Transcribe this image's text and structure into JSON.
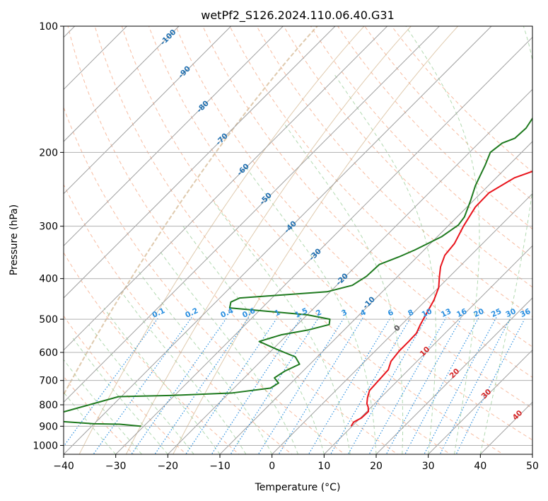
{
  "chart_data": {
    "type": "line",
    "title": "wetPf2_S126.2024.110.06.40.G31",
    "xlabel": "Temperature (°C)",
    "ylabel": "Pressure (hPa)",
    "xlim": [
      -40,
      50
    ],
    "ylim": [
      1050,
      100
    ],
    "y_scale": "log",
    "grid": true,
    "x_ticks": [
      -40,
      -30,
      -20,
      -10,
      0,
      10,
      20,
      30,
      40,
      50
    ],
    "y_ticks": [
      100,
      200,
      300,
      400,
      500,
      600,
      700,
      800,
      900,
      1000
    ],
    "skew": "skew-T log-P diagram",
    "series": [
      {
        "color": "#e8141c",
        "points": [
          [
            9.8,
            900
          ],
          [
            9.5,
            880
          ],
          [
            10.2,
            860
          ],
          [
            10.3,
            830
          ],
          [
            9.4,
            810
          ],
          [
            8.5,
            795
          ],
          [
            7.5,
            770
          ],
          [
            6.5,
            740
          ],
          [
            6.3,
            700
          ],
          [
            6.1,
            660
          ],
          [
            5,
            630
          ],
          [
            4.6,
            595
          ],
          [
            4.6,
            565
          ],
          [
            4.5,
            540
          ],
          [
            3.6,
            515
          ],
          [
            2.5,
            480
          ],
          [
            1.5,
            450
          ],
          [
            0,
            420
          ],
          [
            -2,
            395
          ],
          [
            -3.6,
            375
          ],
          [
            -5,
            352
          ],
          [
            -5.4,
            330
          ],
          [
            -7,
            300
          ],
          [
            -8.4,
            270
          ],
          [
            -8.5,
            250
          ],
          [
            -6.5,
            230
          ],
          [
            -2.3,
            215
          ],
          [
            3.3,
            200
          ],
          [
            7,
            190
          ],
          [
            9.5,
            180
          ],
          [
            12,
            170
          ],
          [
            13.5,
            160
          ],
          [
            15.2,
            150
          ],
          [
            16.2,
            140
          ],
          [
            18,
            130
          ],
          [
            19.4,
            120
          ],
          [
            21.4,
            110
          ],
          [
            23,
            100
          ]
        ]
      },
      {
        "color": "#1f7a1f",
        "points": [
          [
            -30.5,
            900
          ],
          [
            -35,
            890
          ],
          [
            -40,
            888
          ],
          [
            -52,
            868
          ],
          [
            -40.5,
            765
          ],
          [
            -30.8,
            760
          ],
          [
            -19.5,
            750
          ],
          [
            -13,
            730
          ],
          [
            -12.4,
            710
          ],
          [
            -14.2,
            690
          ],
          [
            -13.5,
            665
          ],
          [
            -12,
            640
          ],
          [
            -14.2,
            615
          ],
          [
            -19.2,
            590
          ],
          [
            -24.1,
            565
          ],
          [
            -21.2,
            545
          ],
          [
            -16.8,
            530
          ],
          [
            -13.9,
            515
          ],
          [
            -14.8,
            500
          ],
          [
            -20,
            488
          ],
          [
            -36.2,
            470
          ],
          [
            -37.1,
            455
          ],
          [
            -36.2,
            445
          ],
          [
            -20.6,
            430
          ],
          [
            -17,
            415
          ],
          [
            -16,
            395
          ],
          [
            -15.8,
            370
          ],
          [
            -13.5,
            355
          ],
          [
            -11.8,
            342
          ],
          [
            -9.2,
            318
          ],
          [
            -8.2,
            298
          ],
          [
            -8.6,
            285
          ],
          [
            -10.6,
            260
          ],
          [
            -12.5,
            240
          ],
          [
            -14.5,
            215
          ],
          [
            -16,
            200
          ],
          [
            -15.5,
            190
          ],
          [
            -14,
            185
          ],
          [
            -13.8,
            175
          ],
          [
            -14.5,
            165
          ],
          [
            -12.8,
            155
          ],
          [
            -10.5,
            140
          ],
          [
            -7,
            130
          ],
          [
            -4.5,
            120
          ],
          [
            -3.5,
            110
          ],
          [
            -3,
            100
          ]
        ]
      }
    ],
    "reference_lines": {
      "isotherm_step": 10,
      "dry_adiabat_labels": [
        -100,
        -90,
        -80,
        -70,
        -60,
        -50,
        -40,
        -30,
        -20,
        -10,
        0,
        10,
        20,
        30,
        40
      ],
      "dry_adiabat_label_colors": {
        "cold": "#1f6fb0",
        "warm": "#d62728",
        "zero": "#555555"
      },
      "mixing_ratio_labels": [
        "0.1",
        "0.2",
        "0.4",
        "0.6",
        "1",
        "1.5",
        "2",
        "3",
        "4",
        "6",
        "8",
        "10",
        "13",
        "16",
        "20",
        "25",
        "30",
        "36"
      ],
      "mixing_ratio_color": "#2a8fe0"
    }
  }
}
